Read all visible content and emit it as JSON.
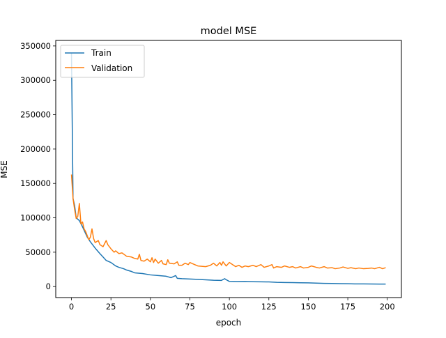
{
  "chart_data": {
    "type": "line",
    "title": "model MSE",
    "xlabel": "epoch",
    "ylabel": "MSE",
    "xlim": [
      -9.95,
      208.95
    ],
    "ylim": [
      -16000,
      358000
    ],
    "xticks": [
      0,
      25,
      50,
      75,
      100,
      125,
      150,
      175,
      200
    ],
    "yticks": [
      0,
      50000,
      100000,
      150000,
      200000,
      250000,
      300000,
      350000
    ],
    "grid": false,
    "legend_position": "top-left",
    "series": [
      {
        "name": "Train",
        "color": "#1f77b4",
        "points": [
          [
            0,
            340000
          ],
          [
            1,
            128000
          ],
          [
            2,
            118000
          ],
          [
            3,
            100000
          ],
          [
            5,
            96000
          ],
          [
            7,
            87000
          ],
          [
            10,
            72000
          ],
          [
            12,
            65000
          ],
          [
            15,
            56000
          ],
          [
            18,
            48000
          ],
          [
            20,
            43000
          ],
          [
            22,
            38000
          ],
          [
            25,
            35000
          ],
          [
            28,
            30000
          ],
          [
            30,
            28000
          ],
          [
            33,
            26000
          ],
          [
            35,
            24000
          ],
          [
            38,
            22000
          ],
          [
            40,
            20000
          ],
          [
            45,
            19000
          ],
          [
            50,
            17000
          ],
          [
            55,
            16000
          ],
          [
            60,
            15000
          ],
          [
            63,
            13000
          ],
          [
            66,
            16000
          ],
          [
            67,
            12000
          ],
          [
            70,
            11500
          ],
          [
            75,
            11000
          ],
          [
            80,
            10500
          ],
          [
            85,
            9800
          ],
          [
            90,
            9200
          ],
          [
            95,
            9000
          ],
          [
            97,
            11500
          ],
          [
            98,
            10000
          ],
          [
            100,
            7500
          ],
          [
            105,
            7300
          ],
          [
            110,
            7400
          ],
          [
            115,
            7100
          ],
          [
            120,
            6900
          ],
          [
            125,
            6800
          ],
          [
            130,
            6200
          ],
          [
            135,
            5900
          ],
          [
            140,
            5800
          ],
          [
            145,
            5600
          ],
          [
            150,
            5400
          ],
          [
            155,
            5000
          ],
          [
            160,
            4700
          ],
          [
            165,
            4500
          ],
          [
            170,
            4300
          ],
          [
            175,
            4100
          ],
          [
            180,
            3900
          ],
          [
            185,
            3900
          ],
          [
            190,
            3700
          ],
          [
            195,
            3600
          ],
          [
            199,
            3600
          ]
        ]
      },
      {
        "name": "Validation",
        "color": "#ff7f0e",
        "points": [
          [
            0,
            163000
          ],
          [
            1,
            128000
          ],
          [
            2,
            112000
          ],
          [
            3,
            99000
          ],
          [
            4,
            102000
          ],
          [
            5,
            121000
          ],
          [
            6,
            91000
          ],
          [
            7,
            94000
          ],
          [
            8,
            84000
          ],
          [
            9,
            80000
          ],
          [
            10,
            74000
          ],
          [
            11,
            68000
          ],
          [
            12,
            72000
          ],
          [
            13,
            84000
          ],
          [
            14,
            70000
          ],
          [
            15,
            64000
          ],
          [
            17,
            67000
          ],
          [
            18,
            61000
          ],
          [
            20,
            58000
          ],
          [
            22,
            67000
          ],
          [
            23,
            61000
          ],
          [
            25,
            55000
          ],
          [
            27,
            50000
          ],
          [
            28,
            52000
          ],
          [
            30,
            48000
          ],
          [
            32,
            49000
          ],
          [
            35,
            44000
          ],
          [
            38,
            43000
          ],
          [
            40,
            41000
          ],
          [
            42,
            40000
          ],
          [
            43,
            47000
          ],
          [
            44,
            38000
          ],
          [
            46,
            37000
          ],
          [
            48,
            40000
          ],
          [
            50,
            36000
          ],
          [
            51,
            42000
          ],
          [
            52,
            35000
          ],
          [
            53,
            40000
          ],
          [
            55,
            34000
          ],
          [
            57,
            38000
          ],
          [
            58,
            33000
          ],
          [
            60,
            32000
          ],
          [
            61,
            39000
          ],
          [
            62,
            34000
          ],
          [
            65,
            33000
          ],
          [
            67,
            36000
          ],
          [
            68,
            31000
          ],
          [
            70,
            31000
          ],
          [
            72,
            34000
          ],
          [
            74,
            32000
          ],
          [
            75,
            35000
          ],
          [
            77,
            33000
          ],
          [
            80,
            30000
          ],
          [
            85,
            29000
          ],
          [
            88,
            31000
          ],
          [
            90,
            34000
          ],
          [
            92,
            30000
          ],
          [
            94,
            35000
          ],
          [
            95,
            31000
          ],
          [
            96,
            36000
          ],
          [
            97,
            33000
          ],
          [
            98,
            30000
          ],
          [
            100,
            35000
          ],
          [
            102,
            32000
          ],
          [
            104,
            29000
          ],
          [
            106,
            31000
          ],
          [
            108,
            28000
          ],
          [
            110,
            30000
          ],
          [
            112,
            29000
          ],
          [
            115,
            31000
          ],
          [
            117,
            29000
          ],
          [
            120,
            32000
          ],
          [
            122,
            28000
          ],
          [
            125,
            30000
          ],
          [
            127,
            32000
          ],
          [
            128,
            27000
          ],
          [
            130,
            29000
          ],
          [
            133,
            28000
          ],
          [
            135,
            30000
          ],
          [
            138,
            28000
          ],
          [
            140,
            29000
          ],
          [
            142,
            27000
          ],
          [
            145,
            29000
          ],
          [
            147,
            27000
          ],
          [
            150,
            28000
          ],
          [
            152,
            30000
          ],
          [
            155,
            28000
          ],
          [
            157,
            27000
          ],
          [
            160,
            29000
          ],
          [
            162,
            27000
          ],
          [
            165,
            27500
          ],
          [
            167,
            26000
          ],
          [
            170,
            27000
          ],
          [
            172,
            28500
          ],
          [
            175,
            26500
          ],
          [
            177,
            27500
          ],
          [
            180,
            26000
          ],
          [
            182,
            27000
          ],
          [
            185,
            26000
          ],
          [
            188,
            26500
          ],
          [
            190,
            27000
          ],
          [
            192,
            26000
          ],
          [
            195,
            28000
          ],
          [
            197,
            26000
          ],
          [
            199,
            27500
          ]
        ]
      }
    ]
  }
}
